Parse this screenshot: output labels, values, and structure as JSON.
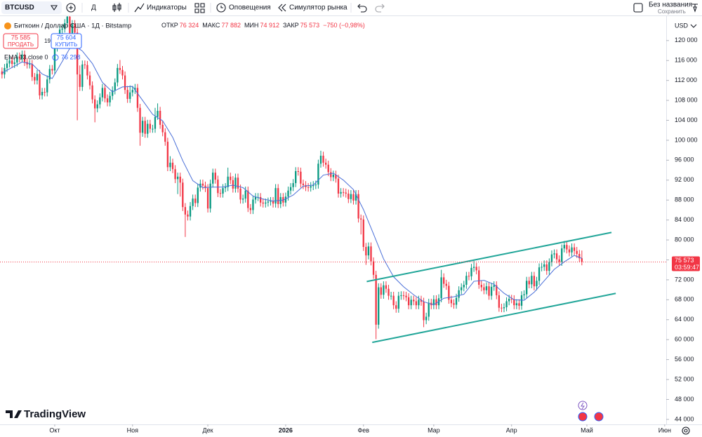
{
  "toolbar": {
    "symbol": "BTCUSD",
    "interval": "Д",
    "indicators": "Индикаторы",
    "alerts": "Оповещения",
    "replay": "Симулятор рынка",
    "layout_name": "Без названия",
    "save": "Сохранить"
  },
  "legend": {
    "title": "Биткоин / Доллар США · 1Д · Bitstamp",
    "ohlc": [
      {
        "label": "ОТКР",
        "value": "76 324"
      },
      {
        "label": "МАКС",
        "value": "77 882"
      },
      {
        "label": "МИН",
        "value": "74 912"
      },
      {
        "label": "ЗАКР",
        "value": "75 573"
      }
    ],
    "change": "−750 (−0,98%)",
    "sell_price": "75 585",
    "sell": "ПРОДАТЬ",
    "spread": "19",
    "buy_price": "75 604",
    "buy": "КУПИТЬ",
    "indicator_value": "76 298"
  },
  "currency": "USD",
  "countdown": "03:59:47",
  "brand": "TradingView",
  "chart_data": {
    "type": "candlestick",
    "up_color": "#089981",
    "down_color": "#f23645",
    "grid": false,
    "xlim": [
      -0.8,
      264.6
    ],
    "ylim": [
      43000,
      124900
    ],
    "xticks": [
      {
        "value": 21,
        "label": "Окт"
      },
      {
        "value": 52,
        "label": "Ноя"
      },
      {
        "value": 82,
        "label": "Дек"
      },
      {
        "value": 113,
        "label": "2026"
      },
      {
        "value": 144,
        "label": "Фев"
      },
      {
        "value": 172,
        "label": "Мар"
      },
      {
        "value": 203,
        "label": "Апр"
      },
      {
        "value": 233,
        "label": "Май"
      },
      {
        "value": 264,
        "label": "Июн"
      }
    ],
    "yticks": [
      {
        "value": 44000,
        "label": "44 000"
      },
      {
        "value": 48000,
        "label": "48 000"
      },
      {
        "value": 52000,
        "label": "52 000"
      },
      {
        "value": 56000,
        "label": "56 000"
      },
      {
        "value": 60000,
        "label": "60 000"
      },
      {
        "value": 64000,
        "label": "64 000"
      },
      {
        "value": 68000,
        "label": "68 000"
      },
      {
        "value": 72000,
        "label": "72 000"
      },
      {
        "value": 76000,
        "label": "76 000"
      },
      {
        "value": 80000,
        "label": "80 000"
      },
      {
        "value": 84000,
        "label": "84 000"
      },
      {
        "value": 88000,
        "label": "88 000"
      },
      {
        "value": 92000,
        "label": "92 000"
      },
      {
        "value": 96000,
        "label": "96 000"
      },
      {
        "value": 100000,
        "label": "100 000"
      },
      {
        "value": 104000,
        "label": "104 000"
      },
      {
        "value": 108000,
        "label": "108 000"
      },
      {
        "value": 112000,
        "label": "112 000"
      },
      {
        "value": 116000,
        "label": "116 000"
      },
      {
        "value": 120000,
        "label": "120 000"
      }
    ],
    "open": [
      113800,
      113200,
      114500,
      115400,
      116000,
      115300,
      115600,
      116800,
      116400,
      117200,
      115700,
      115200,
      115300,
      112700,
      112000,
      113300,
      109000,
      109700,
      109600,
      112200,
      114300,
      114000,
      118600,
      120500,
      122200,
      122400,
      123500,
      124800,
      121500,
      123300,
      121600,
      113200,
      110700,
      115200,
      115100,
      113000,
      111000,
      108200,
      106400,
      107200,
      108600,
      110500,
      108400,
      107600,
      108900,
      110000,
      111600,
      114500,
      114100,
      113000,
      110100,
      108300,
      109600,
      110100,
      110500,
      106500,
      101500,
      103900,
      101300,
      103300,
      102300,
      102300,
      104700,
      105900,
      103100,
      101600,
      99700,
      94600,
      95500,
      94200,
      92200,
      92700,
      91500,
      86600,
      85100,
      84700,
      86800,
      88300,
      87400,
      90500,
      91300,
      90900,
      90400,
      86300,
      91300,
      93500,
      92100,
      89400,
      89300,
      90400,
      90600,
      92700,
      92000,
      90300,
      92500,
      90300,
      88100,
      88300,
      89900,
      86400,
      86000,
      88100,
      88600,
      88600,
      87500,
      87300,
      87500,
      87700,
      87800,
      87300,
      90400,
      87200,
      88600,
      87500,
      88700,
      89900,
      90600,
      91400,
      93800,
      93700,
      91300,
      91000,
      90600,
      90500,
      90800,
      91000,
      91100,
      95300,
      96900,
      95500,
      95100,
      93600,
      92600,
      93100,
      92300,
      89300,
      89600,
      89500,
      89300,
      88200,
      89200,
      87900,
      89200,
      84300,
      84100,
      78600,
      76900,
      78700,
      75700,
      73000,
      63000,
      70500,
      69000,
      70900,
      70200,
      68800,
      68800,
      66900,
      66200,
      68800,
      68900,
      68800,
      68500,
      66900,
      68000,
      67700,
      66900,
      68000,
      67600,
      63900,
      64600,
      67400,
      66900,
      68100,
      66900,
      68300,
      72500,
      71200,
      70800,
      68000,
      67300,
      67000,
      68400,
      69900,
      70500,
      71000,
      72800,
      72700,
      74400,
      74600,
      73900,
      71000,
      70500,
      69900,
      70700,
      68800,
      70600,
      70900,
      68900,
      66400,
      66300,
      66500,
      67700,
      68200,
      68100,
      66900,
      67300,
      66800,
      68900,
      69100,
      71800,
      71100,
      72800,
      70700,
      71800,
      74500,
      74600,
      75100,
      73800,
      75500,
      77100,
      77300,
      76100,
      75600,
      78300,
      79000,
      78100,
      77500,
      78500,
      77800,
      77200,
      76324
    ],
    "high": [
      114600,
      115300,
      116200,
      116800,
      116800,
      116400,
      117600,
      117600,
      118000,
      118000,
      116500,
      116100,
      116100,
      113500,
      114100,
      114100,
      110500,
      110500,
      113000,
      115100,
      115100,
      119400,
      121300,
      123000,
      123200,
      124300,
      126000,
      125600,
      124100,
      124100,
      122400,
      115000,
      116000,
      116000,
      115900,
      113800,
      111800,
      109000,
      108000,
      109400,
      111300,
      111300,
      109200,
      109700,
      110800,
      112400,
      115300,
      116100,
      114900,
      113800,
      110900,
      111000,
      110900,
      111300,
      111300,
      107300,
      104700,
      104700,
      104100,
      104100,
      103100,
      106500,
      107400,
      106700,
      103900,
      102400,
      100500,
      96800,
      96300,
      95000,
      93500,
      93500,
      92300,
      87400,
      85900,
      87600,
      89100,
      89100,
      91300,
      92100,
      92100,
      91700,
      91200,
      92100,
      94300,
      94300,
      92900,
      90200,
      91200,
      91400,
      94500,
      93500,
      92800,
      93300,
      93300,
      91100,
      89100,
      90700,
      90700,
      87200,
      88900,
      89400,
      89400,
      89400,
      88300,
      88300,
      88500,
      88600,
      88600,
      91200,
      91200,
      89400,
      89400,
      89500,
      90700,
      91400,
      92200,
      94600,
      94600,
      94500,
      92100,
      91800,
      91400,
      91600,
      91800,
      91900,
      96100,
      97900,
      97700,
      96300,
      95900,
      94400,
      93900,
      93900,
      93100,
      90400,
      90400,
      90300,
      90100,
      90000,
      90000,
      90000,
      90000,
      85100,
      84900,
      79400,
      79500,
      79500,
      76500,
      73800,
      71300,
      71300,
      71700,
      71700,
      71000,
      69600,
      69600,
      67700,
      69600,
      69700,
      69700,
      69600,
      69300,
      68800,
      68800,
      68500,
      68800,
      68800,
      68400,
      65400,
      68200,
      68200,
      68900,
      68900,
      69100,
      74000,
      73300,
      72000,
      71600,
      68800,
      68100,
      69200,
      70700,
      71300,
      71800,
      73600,
      73600,
      75200,
      75800,
      75400,
      74700,
      71800,
      71300,
      71500,
      71500,
      71400,
      71700,
      71700,
      69700,
      67200,
      67300,
      68500,
      69000,
      69000,
      68900,
      68100,
      68100,
      69700,
      69900,
      72600,
      72600,
      73600,
      73600,
      72600,
      75300,
      75400,
      75900,
      75900,
      76300,
      77900,
      78100,
      78100,
      76900,
      79100,
      79800,
      79800,
      78900,
      79300,
      79300,
      78600,
      78000,
      77882
    ],
    "low": [
      112400,
      112400,
      113700,
      114600,
      114500,
      114500,
      114800,
      115600,
      115600,
      114900,
      114400,
      114400,
      111900,
      111200,
      111200,
      108200,
      108200,
      108800,
      108800,
      111400,
      113200,
      113200,
      117800,
      119700,
      121400,
      121600,
      122700,
      120700,
      120700,
      120800,
      104000,
      109900,
      109900,
      114300,
      112200,
      110200,
      107400,
      103600,
      105600,
      106400,
      107800,
      107600,
      106800,
      106800,
      108100,
      109200,
      110800,
      113300,
      112200,
      109300,
      107500,
      107500,
      108800,
      109300,
      105700,
      98900,
      100700,
      100500,
      100500,
      101500,
      101500,
      101500,
      104100,
      102300,
      100800,
      98900,
      93800,
      93800,
      93400,
      91400,
      89200,
      88700,
      85800,
      80600,
      83900,
      83900,
      86000,
      86600,
      86600,
      89700,
      90100,
      89600,
      85500,
      85500,
      90500,
      91300,
      88600,
      88500,
      88500,
      89600,
      89800,
      91200,
      89500,
      89500,
      89500,
      87300,
      87300,
      87500,
      85600,
      85200,
      85200,
      87300,
      87800,
      86700,
      86500,
      86500,
      86700,
      86900,
      86500,
      86500,
      86400,
      86400,
      86700,
      86700,
      87900,
      89100,
      89800,
      90600,
      92900,
      90500,
      90200,
      89800,
      89700,
      89700,
      90000,
      90200,
      90300,
      94500,
      94700,
      94300,
      92800,
      91800,
      91800,
      91500,
      88500,
      88500,
      88700,
      88500,
      87400,
      87400,
      87100,
      87100,
      83500,
      81100,
      77800,
      75000,
      76100,
      74900,
      72200,
      60100,
      62200,
      68200,
      68200,
      69400,
      68000,
      68000,
      66100,
      65400,
      65400,
      68000,
      68000,
      67700,
      66100,
      66100,
      66900,
      66100,
      66100,
      66800,
      62500,
      63100,
      63800,
      66100,
      66100,
      66100,
      66100,
      67500,
      70400,
      70000,
      67200,
      66500,
      66200,
      66200,
      67600,
      69100,
      69700,
      70200,
      71900,
      71900,
      73600,
      73100,
      70200,
      69700,
      69100,
      69100,
      68000,
      68000,
      69800,
      68100,
      65600,
      65500,
      65500,
      65700,
      66900,
      67300,
      66100,
      66100,
      66000,
      66000,
      68100,
      68300,
      70300,
      70300,
      69900,
      69900,
      71000,
      73700,
      73800,
      73000,
      73000,
      74700,
      76300,
      75300,
      74800,
      74800,
      77500,
      77300,
      76700,
      76700,
      77000,
      76400,
      75500,
      74912
    ],
    "close": [
      113200,
      114500,
      115400,
      116000,
      115300,
      115600,
      116800,
      116400,
      117200,
      115700,
      115200,
      115300,
      112700,
      112000,
      113300,
      109000,
      109700,
      109600,
      112200,
      114300,
      114000,
      118600,
      120500,
      122200,
      122400,
      123500,
      124800,
      121500,
      123300,
      121600,
      113200,
      110700,
      115200,
      115100,
      113000,
      111000,
      108200,
      106400,
      107200,
      108600,
      110500,
      108400,
      107600,
      108900,
      110000,
      111600,
      114500,
      114100,
      113000,
      110100,
      108300,
      109600,
      110100,
      110500,
      106500,
      101500,
      103900,
      101300,
      103300,
      102300,
      102300,
      104700,
      105900,
      103100,
      101600,
      99700,
      94600,
      95500,
      94200,
      92200,
      92700,
      91500,
      86600,
      85100,
      84700,
      86800,
      88300,
      87400,
      90500,
      91300,
      90900,
      90400,
      86300,
      91300,
      93500,
      92100,
      89400,
      89300,
      90400,
      90600,
      92700,
      92000,
      90300,
      92500,
      90300,
      88100,
      88300,
      89900,
      86400,
      86000,
      88100,
      88600,
      88600,
      87500,
      87300,
      87500,
      87700,
      87800,
      87300,
      90400,
      87200,
      88600,
      87500,
      88700,
      89900,
      90600,
      91400,
      93800,
      93700,
      91300,
      91000,
      90600,
      90500,
      90800,
      91000,
      91100,
      95300,
      96900,
      95500,
      95100,
      93600,
      92600,
      93100,
      92300,
      89300,
      89600,
      89500,
      89300,
      88200,
      89200,
      87900,
      89200,
      84300,
      84100,
      78600,
      76900,
      78700,
      75700,
      73000,
      63000,
      70500,
      69000,
      70900,
      70200,
      68800,
      68800,
      66900,
      66200,
      68800,
      68900,
      68800,
      68500,
      66900,
      68000,
      67700,
      66900,
      68000,
      67600,
      63900,
      64600,
      67400,
      66900,
      68100,
      66900,
      68300,
      72500,
      71200,
      70800,
      68000,
      67300,
      67000,
      68400,
      69900,
      70500,
      71000,
      72800,
      72700,
      74400,
      74600,
      73900,
      71000,
      70500,
      69900,
      70700,
      68800,
      70600,
      70900,
      68900,
      66400,
      66300,
      66500,
      67700,
      68200,
      68100,
      66900,
      67300,
      66800,
      68900,
      69100,
      71800,
      71100,
      72800,
      70700,
      71800,
      74500,
      74600,
      75100,
      73800,
      75500,
      77100,
      77300,
      76100,
      75600,
      78300,
      79000,
      78100,
      77500,
      78500,
      77800,
      77200,
      76324,
      75573
    ],
    "ema": {
      "name": "EMA 13 close 0",
      "color": "#4a6fd8",
      "x": [
        0,
        4,
        8,
        12,
        16,
        20,
        24,
        28,
        32,
        36,
        40,
        44,
        48,
        52,
        56,
        60,
        64,
        68,
        72,
        76,
        80,
        84,
        88,
        92,
        96,
        100,
        104,
        108,
        112,
        116,
        120,
        124,
        128,
        132,
        136,
        140,
        144,
        148,
        152,
        156,
        160,
        164,
        168,
        172,
        176,
        180,
        184,
        188,
        192,
        196,
        200,
        204,
        208,
        212,
        216,
        220,
        224,
        228,
        231
      ],
      "values": [
        113500,
        114600,
        115700,
        115300,
        113300,
        112400,
        115800,
        119300,
        117900,
        115400,
        111600,
        109700,
        110700,
        110800,
        108000,
        105200,
        103900,
        100600,
        95900,
        91900,
        90500,
        90600,
        90600,
        91000,
        90500,
        88800,
        88200,
        87800,
        88000,
        89000,
        90800,
        91000,
        93000,
        93400,
        92000,
        90100,
        86100,
        81200,
        76200,
        72600,
        70600,
        69000,
        67600,
        67000,
        68300,
        68600,
        69100,
        71700,
        71900,
        71100,
        69300,
        68000,
        67900,
        69500,
        71800,
        74100,
        75600,
        76900,
        76298
      ]
    },
    "trendline_color": "#22a699",
    "trendlines": [
      {
        "x": [
          145.3,
          242.8
        ],
        "values": [
          71650,
          81500
        ]
      },
      {
        "x": [
          147.5,
          244.5
        ],
        "values": [
          59450,
          69280
        ]
      }
    ],
    "last_price": {
      "value": 75573,
      "label": "75 573"
    }
  }
}
